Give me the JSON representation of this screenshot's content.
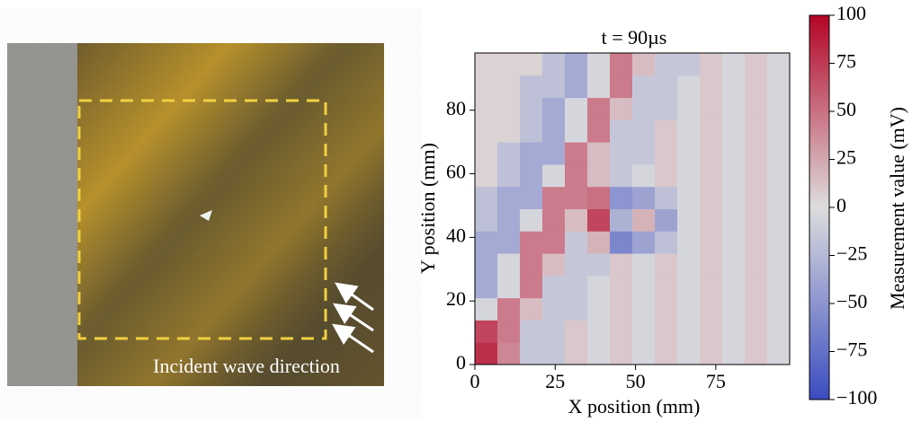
{
  "photo": {
    "annotation": "Incident wave direction"
  },
  "chart_data": {
    "type": "heatmap",
    "title": "t = 90µs",
    "xlabel": "X position (mm)",
    "ylabel": "Y position (mm)",
    "xlim": [
      0,
      98
    ],
    "ylim": [
      0,
      98
    ],
    "xticks": [
      0,
      25,
      50,
      75
    ],
    "yticks": [
      0,
      20,
      40,
      60,
      80
    ],
    "x": [
      3.5,
      10.5,
      17.5,
      24.5,
      31.5,
      38.5,
      45.5,
      52.5,
      59.5,
      66.5,
      73.5,
      80.5,
      87.5,
      94.5
    ],
    "y": [
      3.5,
      10.5,
      17.5,
      24.5,
      31.5,
      38.5,
      45.5,
      52.5,
      59.5,
      66.5,
      73.5,
      80.5,
      87.5,
      94.5
    ],
    "z": [
      [
        80,
        40,
        -15,
        -15,
        10,
        -5,
        10,
        -5,
        10,
        -5,
        10,
        -5,
        10,
        -5
      ],
      [
        70,
        45,
        -15,
        -15,
        10,
        -5,
        10,
        -5,
        10,
        -5,
        10,
        -5,
        10,
        -5
      ],
      [
        -5,
        45,
        15,
        -15,
        -15,
        -5,
        10,
        -5,
        10,
        -5,
        10,
        -5,
        10,
        -5
      ],
      [
        -35,
        -5,
        45,
        -15,
        -15,
        -5,
        10,
        -5,
        10,
        -5,
        10,
        -5,
        10,
        -5
      ],
      [
        -35,
        -5,
        45,
        15,
        -15,
        -15,
        10,
        -5,
        10,
        -5,
        10,
        -5,
        10,
        -5
      ],
      [
        -35,
        -35,
        45,
        45,
        -15,
        20,
        -60,
        -40,
        -20,
        -5,
        10,
        -5,
        10,
        -5
      ],
      [
        -20,
        -35,
        -5,
        45,
        15,
        70,
        -30,
        20,
        -40,
        -5,
        10,
        -5,
        10,
        -5
      ],
      [
        -20,
        -35,
        -35,
        45,
        45,
        50,
        -50,
        -40,
        -20,
        -5,
        10,
        -5,
        10,
        -5
      ],
      [
        5,
        -20,
        -35,
        -5,
        45,
        15,
        -15,
        -5,
        10,
        -5,
        10,
        -5,
        10,
        -5
      ],
      [
        5,
        -20,
        -35,
        -35,
        45,
        15,
        -15,
        -15,
        10,
        -5,
        10,
        -5,
        10,
        -5
      ],
      [
        5,
        5,
        -20,
        -35,
        -5,
        45,
        -15,
        -15,
        10,
        -5,
        10,
        -5,
        10,
        -5
      ],
      [
        5,
        5,
        -20,
        -35,
        -5,
        45,
        15,
        -15,
        -15,
        -5,
        10,
        -5,
        10,
        -5
      ],
      [
        5,
        5,
        -20,
        -20,
        -35,
        -5,
        45,
        -15,
        -15,
        -5,
        10,
        -5,
        10,
        -5
      ],
      [
        5,
        5,
        5,
        -20,
        -35,
        -5,
        45,
        15,
        -15,
        -15,
        10,
        -5,
        10,
        -5
      ]
    ],
    "colormap": [
      "#3b4cc0",
      "#dddddd",
      "#b40426"
    ],
    "colorbar_label": "Measurement value (mV)",
    "zlim": [
      -100,
      100
    ],
    "zticks": [
      {
        "value": -100,
        "label": "−100"
      },
      {
        "value": -75,
        "label": "−75"
      },
      {
        "value": -50,
        "label": "−50"
      },
      {
        "value": -25,
        "label": "−25"
      },
      0,
      25,
      50,
      75,
      100
    ]
  }
}
